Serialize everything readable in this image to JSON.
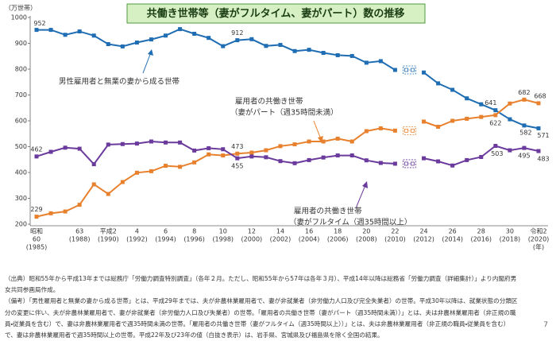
{
  "chart_data": {
    "type": "line",
    "title": "共働き世帯等（妻がフルタイム、妻がパート）数の推移",
    "y_label": "（万世帯）",
    "x_unit": "(年)",
    "ylim": [
      200,
      1000
    ],
    "yticks": [
      200,
      300,
      400,
      500,
      600,
      700,
      800,
      900,
      1000
    ],
    "categories": [
      {
        "era": "昭和",
        "label": "60",
        "year": "(1985)"
      },
      null,
      null,
      {
        "label": "63",
        "year": "(1988)"
      },
      null,
      {
        "label": "平成2",
        "year": "(1990)"
      },
      null,
      {
        "label": "4",
        "year": "(1992)"
      },
      null,
      {
        "label": "6",
        "year": "(1994)"
      },
      null,
      {
        "label": "8",
        "year": "(1996)"
      },
      null,
      {
        "label": "10",
        "year": "(1998)"
      },
      null,
      {
        "label": "12",
        "year": "(2000)"
      },
      null,
      {
        "label": "14",
        "year": "(2002)"
      },
      null,
      {
        "label": "16",
        "year": "(2004)"
      },
      null,
      {
        "label": "18",
        "year": "(2006)"
      },
      null,
      {
        "label": "20",
        "year": "(2008)"
      },
      null,
      {
        "label": "22",
        "year": "(2010)"
      },
      null,
      {
        "label": "24",
        "year": "(2012)"
      },
      null,
      {
        "label": "26",
        "year": "(2014)"
      },
      null,
      {
        "label": "28",
        "year": "(2016)"
      },
      null,
      {
        "label": "30",
        "year": "(2018)"
      },
      null,
      {
        "label": "令和2",
        "year": "(2020)"
      }
    ],
    "series": [
      {
        "name": "男性雇用者と無業の妻から成る世帯",
        "color": "#1f6db3",
        "values": [
          952,
          952,
          933,
          946,
          930,
          897,
          888,
          903,
          915,
          930,
          955,
          937,
          921,
          889,
          912,
          916,
          890,
          894,
          870,
          875,
          863,
          854,
          851,
          825,
          831,
          797,
          null,
          787,
          745,
          720,
          687,
          664,
          641,
          606,
          582,
          571
        ],
        "value_labels": [
          "952",
          null,
          null,
          null,
          null,
          null,
          null,
          null,
          null,
          null,
          null,
          null,
          null,
          null,
          "912",
          null,
          null,
          null,
          null,
          null,
          null,
          null,
          null,
          null,
          null,
          null,
          null,
          null,
          null,
          null,
          null,
          null,
          "641",
          null,
          "582",
          "571"
        ]
      },
      {
        "name": "雇用者の共働き世帯",
        "name_detail": "（妻がパート（週35時間未満）",
        "color": "#e8812e",
        "values": [
          229,
          242,
          249,
          275,
          354,
          317,
          363,
          399,
          405,
          426,
          422,
          439,
          470,
          466,
          473,
          477,
          486,
          502,
          509,
          520,
          520,
          531,
          520,
          560,
          571,
          562,
          null,
          597,
          577,
          600,
          608,
          615,
          622,
          667,
          682,
          668
        ],
        "value_labels": [
          "229",
          null,
          null,
          null,
          null,
          null,
          null,
          null,
          null,
          null,
          null,
          null,
          null,
          null,
          "473",
          null,
          null,
          null,
          null,
          null,
          null,
          null,
          null,
          null,
          null,
          null,
          null,
          null,
          null,
          null,
          null,
          null,
          "622",
          null,
          "682",
          "668"
        ]
      },
      {
        "name": "雇用者の共働き世帯",
        "name_detail": "（妻がフルタイム（週35時間以上）",
        "color": "#6a3a9c",
        "values": [
          462,
          480,
          496,
          492,
          432,
          508,
          510,
          512,
          520,
          516,
          516,
          485,
          494,
          490,
          455,
          462,
          459,
          444,
          436,
          448,
          458,
          466,
          466,
          447,
          437,
          434,
          null,
          455,
          443,
          427,
          448,
          460,
          503,
          486,
          495,
          483
        ],
        "value_labels": [
          "462",
          null,
          null,
          null,
          null,
          null,
          null,
          null,
          null,
          null,
          null,
          null,
          null,
          null,
          "455",
          null,
          null,
          null,
          null,
          null,
          null,
          null,
          null,
          null,
          null,
          null,
          null,
          null,
          null,
          null,
          null,
          null,
          "503",
          null,
          "495",
          "483"
        ]
      }
    ]
  },
  "notes": [
    "（出典）昭和55年から平成13年までは総務庁「労働力調査特別調査」（各年２月。ただし、昭和55年から57年は各年３月）、平成14年以降は総務省「労働力調査（詳細集計）」より内閣府男女共同参画局作成。",
    "（備考）「男性雇用者と無業の妻から成る世帯」とは、平成29年までは、夫が非農林業雇用者で、妻が非就業者（非労働力人口及び完全失業者）の世帯。平成30年以降は、就業状態の分類区分の変更に伴い、夫が非農林業雇用者で、妻が非就業者（非労働力人口及び失業者）の世帯。「雇用者の共働き世帯（妻がパート（週35時間未満））」とは、夫は非農林業雇用者（非正規の職員・従業員を含む）で、妻は非農林業雇用者で週35時間未満の世帯。「雇用者の共働き世帯（妻がフルタイム（週35時間以上））」とは、夫は非農林業雇用者（非正規の職員・従業員を含む）で、妻は非農林業雇用者で週35時間以上の世帯。平成22年及び23年の値（白抜き表示）は、岩手県、宮城県及び福島県を除く全国の結果。"
  ],
  "page_number": "7"
}
